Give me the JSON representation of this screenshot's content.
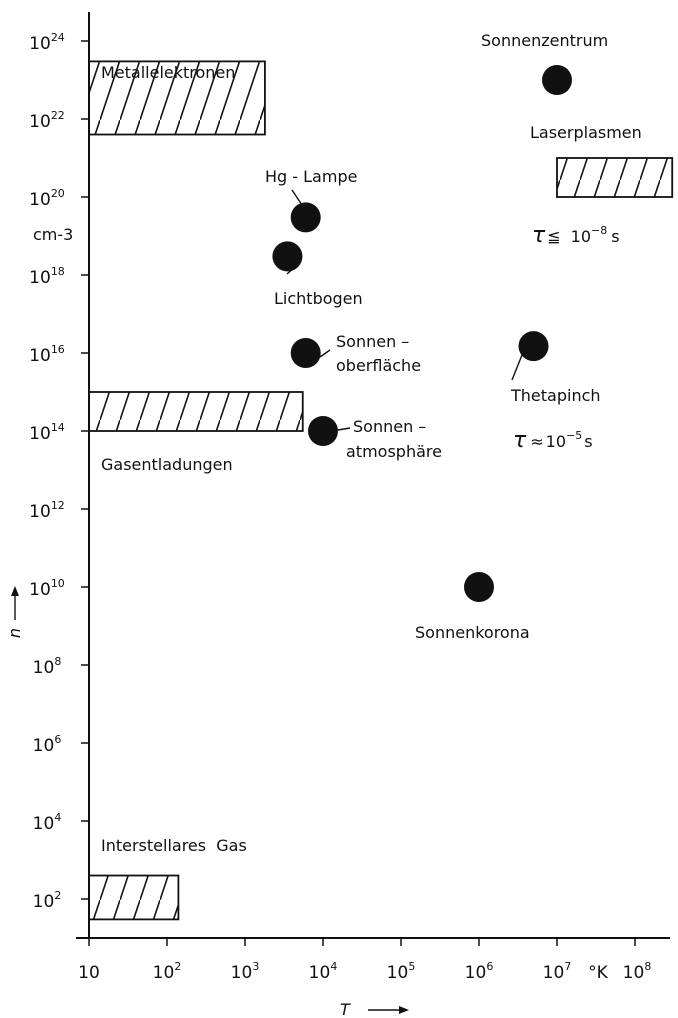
{
  "chart_data": {
    "type": "scatter",
    "xscale": "log",
    "yscale": "log",
    "xlim": [
      10,
      300000000
    ],
    "ylim": [
      10,
      10000000000000000000000000
    ],
    "xlabel": "T",
    "ylabel": "n",
    "y_unit": "cm-3",
    "x_unit": "°K",
    "grid": false,
    "x_ticks": [
      {
        "value": 10,
        "base": "10",
        "exp": ""
      },
      {
        "value": 100,
        "base": "10",
        "exp": "2"
      },
      {
        "value": 1000,
        "base": "10",
        "exp": "3"
      },
      {
        "value": 10000,
        "base": "10",
        "exp": "4"
      },
      {
        "value": 100000,
        "base": "10",
        "exp": "5"
      },
      {
        "value": 1000000,
        "base": "10",
        "exp": "6"
      },
      {
        "value": 10000000,
        "base": "10",
        "exp": "7"
      },
      {
        "value": 100000000,
        "base": "10",
        "exp": "8"
      }
    ],
    "y_ticks": [
      {
        "value": 100,
        "base": "10",
        "exp": "2"
      },
      {
        "value": 10000,
        "base": "10",
        "exp": "4"
      },
      {
        "value": 1000000,
        "base": "10",
        "exp": "6"
      },
      {
        "value": 100000000,
        "base": "10",
        "exp": "8"
      },
      {
        "value": 10000000000,
        "base": "10",
        "exp": "10"
      },
      {
        "value": 1000000000000,
        "base": "10",
        "exp": "12"
      },
      {
        "value": 100000000000000,
        "base": "10",
        "exp": "14"
      },
      {
        "value": 10000000000000000,
        "base": "10",
        "exp": "16"
      },
      {
        "value": 1000000000000000000,
        "base": "10",
        "exp": "18"
      },
      {
        "value": 100000000000000000000,
        "base": "10",
        "exp": "20"
      },
      {
        "value": 10000000000000000000000,
        "base": "10",
        "exp": "22"
      },
      {
        "value": 1000000000000000000000000,
        "base": "10",
        "exp": "24"
      }
    ],
    "regions": [
      {
        "label": "Metallelektronen",
        "x": [
          10,
          1800
        ],
        "y": [
          4e+21,
          3e+23
        ]
      },
      {
        "label": "Laserplasmen",
        "x": [
          10000000.0,
          300000000.0
        ],
        "y": [
          1e+20,
          1e+21
        ],
        "note": "τ ≦ 10⁻⁸ s"
      },
      {
        "label": "Gasentladungen",
        "x": [
          10,
          5500
        ],
        "y": [
          100000000000000.0,
          1000000000000000.0
        ]
      },
      {
        "label": "Interstellares Gas",
        "x": [
          10,
          140
        ],
        "y": [
          30,
          400
        ]
      }
    ],
    "points": [
      {
        "label": "Sonnenzentrum",
        "x": 10000000.0,
        "y": 1e+23
      },
      {
        "label": "Hg - Lampe",
        "x": 6000,
        "y": 3e+19
      },
      {
        "label": "Lichtbogen",
        "x": 3500,
        "y": 3e+18
      },
      {
        "label": "Sonnen- oberfläche",
        "x": 6000,
        "y": 1e+16
      },
      {
        "label": "Sonnen- atmosphäre",
        "x": 10000,
        "y": 100000000000000.0
      },
      {
        "label": "Thetapinch",
        "x": 5000000,
        "y": 1.5e+16,
        "note": "τ ≈ 10⁻⁵ s"
      },
      {
        "label": "Sonnenkorona",
        "x": 1000000,
        "y": 10000000000.0
      }
    ]
  },
  "labels": {
    "metallelektronen": "Metallelektronen",
    "sonnenzentrum": "Sonnenzentrum",
    "laserplasmen": "Laserplasmen",
    "laser_tau_sym": "τ",
    "laser_tau_rel": "≦",
    "laser_tau_base": "10",
    "laser_tau_exp": "−8",
    "laser_tau_unit": "s",
    "hg_lampe": "Hg - Lampe",
    "lichtbogen": "Lichtbogen",
    "sonnen_ober_1": "Sonnen –",
    "sonnen_ober_2": "oberfläche",
    "thetapinch": "Thetapinch",
    "theta_tau_sym": "τ",
    "theta_tau_rel": "≈",
    "theta_tau_base": "10",
    "theta_tau_exp": "−5",
    "theta_tau_unit": "s",
    "gasentladungen": "Gasentladungen",
    "sonnen_atm_1": "Sonnen –",
    "sonnen_atm_2": "atmosphäre",
    "sonnenkorona": "Sonnenkorona",
    "interstellares": "Interstellares  Gas",
    "y_unit": "cm-3",
    "y_axis_name": "n",
    "x_axis_name": "T",
    "x_unit": "°K"
  }
}
